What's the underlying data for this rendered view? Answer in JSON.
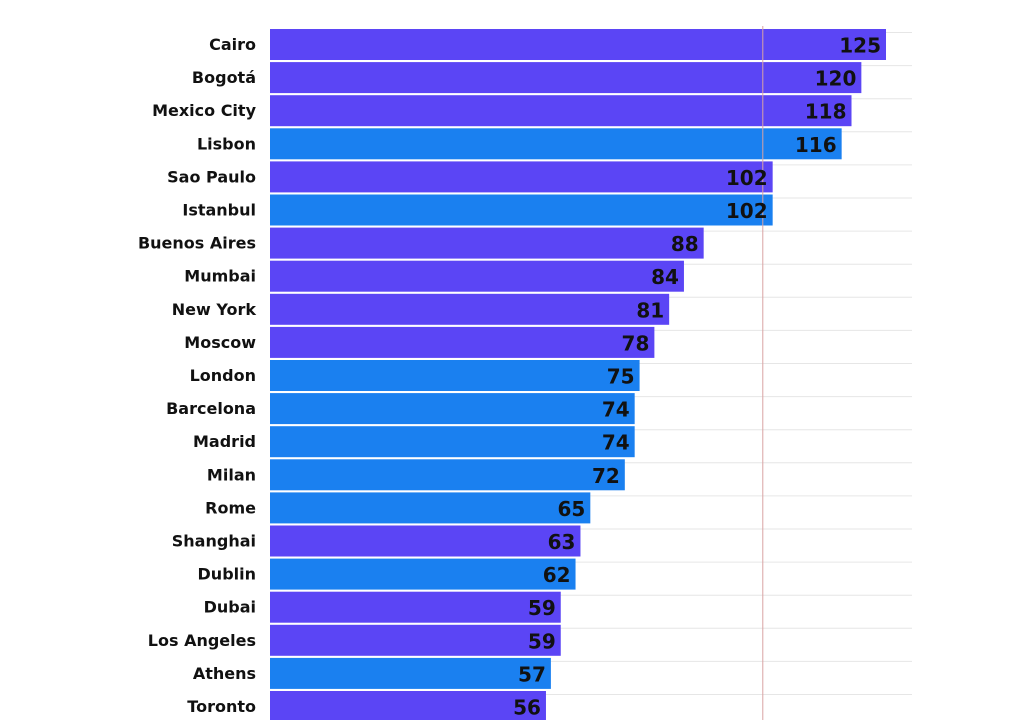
{
  "chart_data": {
    "type": "bar",
    "orientation": "horizontal",
    "categories": [
      "Cairo",
      "Bogotá",
      "Mexico City",
      "Lisbon",
      "Sao Paulo",
      "Istanbul",
      "Buenos Aires",
      "Mumbai",
      "New York",
      "Moscow",
      "London",
      "Barcelona",
      "Madrid",
      "Milan",
      "Rome",
      "Shanghai",
      "Dublin",
      "Dubai",
      "Los Angeles",
      "Athens",
      "Toronto"
    ],
    "values": [
      125,
      120,
      118,
      116,
      102,
      102,
      88,
      84,
      81,
      78,
      75,
      74,
      74,
      72,
      65,
      63,
      62,
      59,
      59,
      57,
      56
    ],
    "groups": [
      "non-europe",
      "non-europe",
      "non-europe",
      "europe",
      "non-europe",
      "europe",
      "non-europe",
      "non-europe",
      "non-europe",
      "non-europe",
      "europe",
      "europe",
      "europe",
      "europe",
      "europe",
      "non-europe",
      "europe",
      "non-europe",
      "non-europe",
      "europe",
      "non-europe"
    ],
    "colors": {
      "non-europe": "#5b45f5",
      "europe": "#1a80f0"
    },
    "reference_line": 100,
    "reference_line_color": "#d9a3a3",
    "xlim": [
      0,
      130
    ],
    "grid": true,
    "title": "",
    "xlabel": "",
    "ylabel": ""
  }
}
